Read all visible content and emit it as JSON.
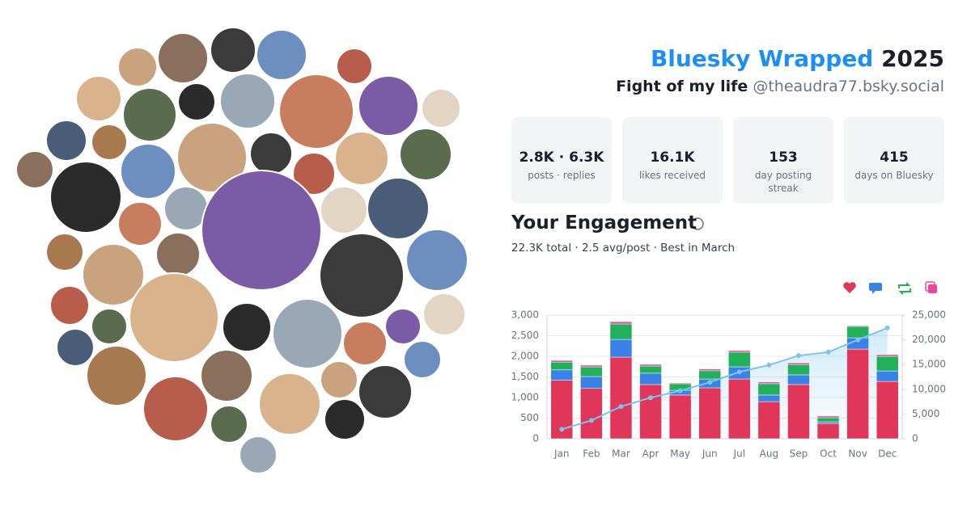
{
  "header": {
    "title": "Bluesky Wrapped",
    "year": "2025",
    "name": "Fight of my life",
    "handle": "@theaudra77.bsky.social"
  },
  "stats": [
    {
      "value": "2.8K · 6.3K",
      "label": "posts · replies"
    },
    {
      "value": "16.1K",
      "label": "likes received"
    },
    {
      "value": "153",
      "label": "day posting streak"
    },
    {
      "value": "415",
      "label": "days on Bluesky"
    }
  ],
  "engagement": {
    "title": "Your Engagement",
    "summary": "22.3K total · 2.5 avg/post · Best in March"
  },
  "chart_data": {
    "type": "bar",
    "stacked": true,
    "categories": [
      "Jan",
      "Feb",
      "Mar",
      "Apr",
      "May",
      "Jun",
      "Jul",
      "Aug",
      "Sep",
      "Oct",
      "Nov",
      "Dec"
    ],
    "series": [
      {
        "color": "#e0365a",
        "values": [
          1420,
          1220,
          1980,
          1315,
          1060,
          1235,
          1450,
          900,
          1315,
          370,
          2175,
          1390
        ]
      },
      {
        "color": "#3b82e6",
        "values": [
          250,
          290,
          430,
          275,
          115,
          215,
          295,
          160,
          235,
          40,
          275,
          255
        ]
      },
      {
        "color": "#22b15a",
        "values": [
          190,
          235,
          375,
          175,
          160,
          200,
          355,
          275,
          250,
          100,
          275,
          355
        ]
      },
      {
        "color": "#e8489a",
        "values": [
          40,
          40,
          55,
          40,
          20,
          40,
          40,
          40,
          40,
          40,
          20,
          40
        ]
      },
      {
        "type": "line",
        "axis": "y2",
        "color": "#7cc4ee",
        "values": [
          1900,
          3700,
          6500,
          8300,
          9700,
          11400,
          13500,
          14900,
          16800,
          17500,
          20000,
          22400
        ]
      }
    ],
    "ylim": [
      0,
      3000
    ],
    "yticks": [
      0,
      500,
      {
        "value": 1000,
        "label": "1,000"
      },
      {
        "value": 1500,
        "label": "1,500"
      },
      {
        "value": 2000,
        "label": "2,000"
      },
      {
        "value": 2500,
        "label": "2,500"
      },
      {
        "value": 3000,
        "label": "3,000"
      }
    ],
    "y2lim": [
      0,
      25000
    ],
    "y2ticks": [
      0,
      {
        "value": 5000,
        "label": "5,000"
      },
      {
        "value": 10000,
        "label": "10,000"
      },
      {
        "value": 15000,
        "label": "15,000"
      },
      {
        "value": 20000,
        "label": "20,000"
      },
      {
        "value": 25000,
        "label": "25,000"
      }
    ],
    "grid": true
  }
}
